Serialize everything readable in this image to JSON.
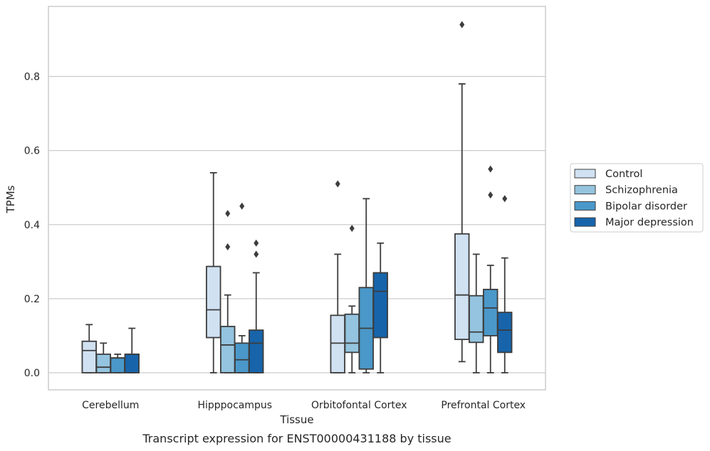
{
  "caption": "Transcript expression for ENST00000431188 by tissue",
  "chart_data": {
    "type": "box",
    "xlabel": "Tissue",
    "ylabel": "TPMs",
    "ylim": [
      -0.045,
      0.99
    ],
    "yticks": [
      0.0,
      0.2,
      0.4,
      0.6,
      0.8
    ],
    "ytick_labels": [
      "0.0",
      "0.2",
      "0.4",
      "0.6",
      "0.8"
    ],
    "grid": "horizontal",
    "legend_position": "right",
    "categories": [
      "Cerebellum",
      "Hipppocampus",
      "Orbitofontal Cortex",
      "Prefrontal Cortex"
    ],
    "series": [
      {
        "name": "Control",
        "color": "#d0e1f2",
        "boxes": [
          {
            "min": 0.0,
            "q1": 0.0,
            "median": 0.06,
            "q3": 0.085,
            "max": 0.13,
            "outliers": []
          },
          {
            "min": 0.0,
            "q1": 0.095,
            "median": 0.17,
            "q3": 0.287,
            "max": 0.54,
            "outliers": []
          },
          {
            "min": 0.0,
            "q1": 0.0,
            "median": 0.08,
            "q3": 0.155,
            "max": 0.32,
            "outliers": [
              0.51
            ]
          },
          {
            "min": 0.03,
            "q1": 0.09,
            "median": 0.21,
            "q3": 0.375,
            "max": 0.78,
            "outliers": [
              0.94
            ]
          }
        ]
      },
      {
        "name": "Schizophrenia",
        "color": "#94c4df",
        "boxes": [
          {
            "min": 0.0,
            "q1": 0.0,
            "median": 0.015,
            "q3": 0.05,
            "max": 0.08,
            "outliers": []
          },
          {
            "min": 0.0,
            "q1": 0.0,
            "median": 0.075,
            "q3": 0.125,
            "max": 0.21,
            "outliers": [
              0.34,
              0.43
            ]
          },
          {
            "min": 0.0,
            "q1": 0.055,
            "median": 0.08,
            "q3": 0.158,
            "max": 0.18,
            "outliers": [
              0.39
            ]
          },
          {
            "min": 0.0,
            "q1": 0.082,
            "median": 0.11,
            "q3": 0.208,
            "max": 0.32,
            "outliers": []
          }
        ]
      },
      {
        "name": "Bipolar disorder",
        "color": "#4a98c9",
        "boxes": [
          {
            "min": 0.0,
            "q1": 0.0,
            "median": 0.04,
            "q3": 0.04,
            "max": 0.05,
            "outliers": []
          },
          {
            "min": 0.0,
            "q1": 0.0,
            "median": 0.035,
            "q3": 0.08,
            "max": 0.1,
            "outliers": [
              0.45
            ]
          },
          {
            "min": 0.0,
            "q1": 0.01,
            "median": 0.12,
            "q3": 0.23,
            "max": 0.47,
            "outliers": []
          },
          {
            "min": 0.0,
            "q1": 0.1,
            "median": 0.175,
            "q3": 0.225,
            "max": 0.29,
            "outliers": [
              0.48,
              0.55
            ]
          }
        ]
      },
      {
        "name": "Major depression",
        "color": "#1764ab",
        "boxes": [
          {
            "min": 0.0,
            "q1": 0.0,
            "median": 0.05,
            "q3": 0.05,
            "max": 0.12,
            "outliers": []
          },
          {
            "min": 0.0,
            "q1": 0.0,
            "median": 0.08,
            "q3": 0.115,
            "max": 0.27,
            "outliers": [
              0.32,
              0.35
            ]
          },
          {
            "min": 0.0,
            "q1": 0.095,
            "median": 0.22,
            "q3": 0.27,
            "max": 0.35,
            "outliers": []
          },
          {
            "min": 0.0,
            "q1": 0.055,
            "median": 0.115,
            "q3": 0.163,
            "max": 0.31,
            "outliers": [
              0.47
            ]
          }
        ]
      }
    ]
  }
}
